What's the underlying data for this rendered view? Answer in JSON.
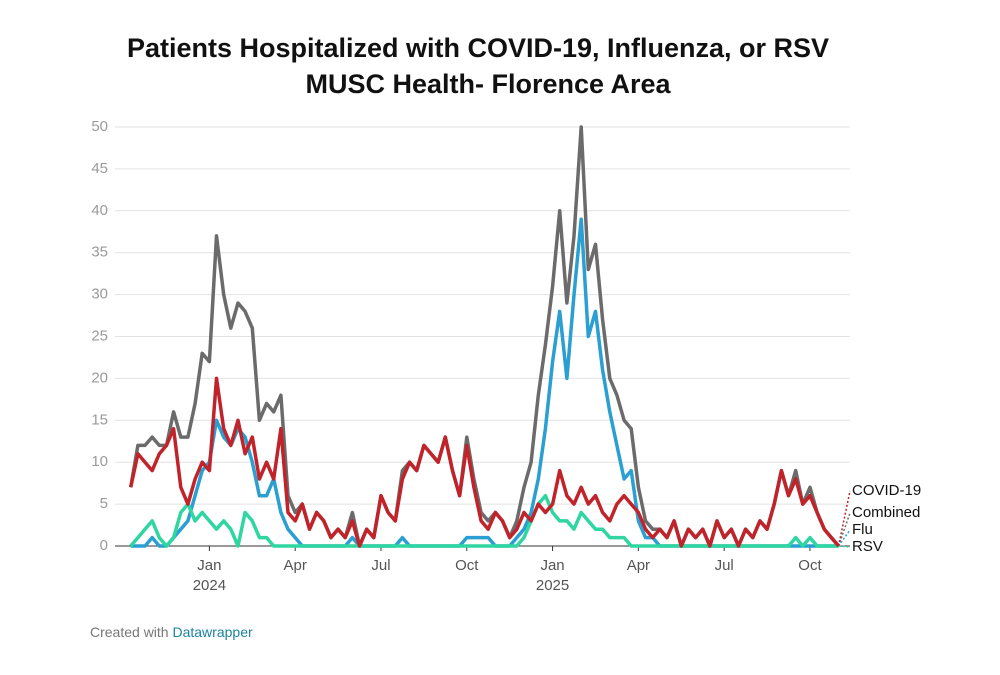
{
  "chart_data": {
    "type": "line",
    "title": "Patients Hospitalized with COVID-19, Influenza, or RSV",
    "subtitle": "MUSC Health- Florence Area",
    "x": [
      -2.75,
      -2.5,
      -2.25,
      -2,
      -1.75,
      -1.5,
      -1.25,
      -1,
      -0.75,
      -0.5,
      -0.25,
      0,
      0.25,
      0.5,
      0.75,
      1,
      1.25,
      1.5,
      1.75,
      2,
      2.25,
      2.5,
      2.75,
      3,
      3.25,
      3.5,
      3.75,
      4,
      4.25,
      4.5,
      4.75,
      5,
      5.25,
      5.5,
      5.75,
      6,
      6.25,
      6.5,
      6.75,
      7,
      7.25,
      7.5,
      7.75,
      8,
      8.25,
      8.5,
      8.75,
      9,
      9.25,
      9.5,
      9.75,
      10,
      10.25,
      10.5,
      10.75,
      11,
      11.25,
      11.5,
      11.75,
      12,
      12.25,
      12.5,
      12.75,
      13,
      13.25,
      13.5,
      13.75,
      14,
      14.25,
      14.5,
      14.75,
      15,
      15.25,
      15.5,
      15.75,
      16,
      16.25,
      16.5,
      16.75,
      17,
      17.25,
      17.5,
      17.75,
      18,
      18.25,
      18.5,
      18.75,
      19,
      19.25,
      19.5,
      19.75,
      20,
      20.25,
      20.5,
      20.75,
      21,
      21.25,
      21.5,
      21.75,
      22
    ],
    "series": [
      {
        "name": "Combined",
        "color": "#6b6b6b",
        "values": [
          7,
          12,
          12,
          13,
          12,
          12,
          16,
          13,
          13,
          17,
          23,
          22,
          37,
          30,
          26,
          29,
          28,
          26,
          15,
          17,
          16,
          18,
          6,
          4,
          5,
          2,
          4,
          3,
          1,
          2,
          1,
          4,
          0,
          2,
          1,
          6,
          4,
          3,
          9,
          10,
          9,
          12,
          11,
          10,
          13,
          9,
          6,
          13,
          8,
          4,
          3,
          4,
          3,
          1,
          3,
          7,
          10,
          18,
          24,
          31,
          40,
          29,
          37,
          50,
          33,
          36,
          27,
          20,
          18,
          15,
          14,
          7,
          3,
          2,
          2,
          1,
          3,
          0,
          2,
          1,
          2,
          0,
          3,
          1,
          2,
          0,
          2,
          1,
          3,
          2,
          5,
          9,
          6,
          9,
          5,
          7,
          4,
          2,
          1,
          0
        ]
      },
      {
        "name": "Flu",
        "color": "#2b9fd1",
        "values": [
          0,
          0,
          0,
          1,
          0,
          0,
          1,
          2,
          3,
          6,
          9,
          10,
          15,
          13,
          12,
          14,
          13,
          10,
          6,
          6,
          8,
          4,
          2,
          1,
          0,
          0,
          0,
          0,
          0,
          0,
          0,
          1,
          0,
          0,
          0,
          0,
          0,
          0,
          1,
          0,
          0,
          0,
          0,
          0,
          0,
          0,
          0,
          1,
          1,
          1,
          1,
          0,
          0,
          0,
          1,
          2,
          4,
          8,
          14,
          22,
          28,
          20,
          30,
          39,
          25,
          28,
          21,
          16,
          12,
          8,
          9,
          3,
          1,
          1,
          0,
          0,
          0,
          0,
          0,
          0,
          0,
          0,
          0,
          0,
          0,
          0,
          0,
          0,
          0,
          0,
          0,
          0,
          0,
          0,
          0,
          0,
          0,
          0,
          0,
          0
        ]
      },
      {
        "name": "RSV",
        "color": "#2fd6a0",
        "values": [
          0,
          1,
          2,
          3,
          1,
          0,
          1,
          4,
          5,
          3,
          4,
          3,
          2,
          3,
          2,
          0,
          4,
          3,
          1,
          1,
          0,
          0,
          0,
          0,
          0,
          0,
          0,
          0,
          0,
          0,
          0,
          0,
          0,
          0,
          0,
          0,
          0,
          0,
          0,
          0,
          0,
          0,
          0,
          0,
          0,
          0,
          0,
          0,
          0,
          0,
          0,
          0,
          0,
          0,
          0,
          1,
          3,
          5,
          6,
          4,
          3,
          3,
          2,
          4,
          3,
          2,
          2,
          1,
          1,
          1,
          0,
          0,
          0,
          0,
          0,
          0,
          0,
          0,
          0,
          0,
          0,
          0,
          0,
          0,
          0,
          0,
          0,
          0,
          0,
          0,
          0,
          0,
          0,
          1,
          0,
          1,
          0,
          0,
          0,
          0
        ]
      },
      {
        "name": "COVID-19",
        "color": "#c1232b",
        "values": [
          7,
          11,
          10,
          9,
          11,
          12,
          14,
          7,
          5,
          8,
          10,
          9,
          20,
          14,
          12,
          15,
          11,
          13,
          8,
          10,
          8,
          14,
          4,
          3,
          5,
          2,
          4,
          3,
          1,
          2,
          1,
          3,
          0,
          2,
          1,
          6,
          4,
          3,
          8,
          10,
          9,
          12,
          11,
          10,
          13,
          9,
          6,
          12,
          7,
          3,
          2,
          4,
          3,
          1,
          2,
          4,
          3,
          5,
          4,
          5,
          9,
          6,
          5,
          7,
          5,
          6,
          4,
          3,
          5,
          6,
          5,
          4,
          2,
          1,
          2,
          1,
          3,
          0,
          2,
          1,
          2,
          0,
          3,
          1,
          2,
          0,
          2,
          1,
          3,
          2,
          5,
          9,
          6,
          8,
          5,
          6,
          4,
          2,
          1,
          0
        ]
      }
    ],
    "xlim": [
      -3.3,
      22.4
    ],
    "xticks": [
      {
        "value": 0,
        "label": "Jan"
      },
      {
        "value": 3,
        "label": "Apr"
      },
      {
        "value": 6,
        "label": "Jul"
      },
      {
        "value": 9,
        "label": "Oct"
      },
      {
        "value": 12,
        "label": "Jan"
      },
      {
        "value": 15,
        "label": "Apr"
      },
      {
        "value": 18,
        "label": "Jul"
      },
      {
        "value": 21,
        "label": "Oct"
      }
    ],
    "xtick_years": [
      {
        "value": 0,
        "label": "2024"
      },
      {
        "value": 12,
        "label": "2025"
      }
    ],
    "ylim": [
      0,
      50
    ],
    "yticks": [
      0,
      5,
      10,
      15,
      20,
      25,
      30,
      35,
      40,
      45,
      50
    ],
    "grid": true,
    "footer": {
      "text": "Created with",
      "link": "Datawrapper"
    }
  }
}
